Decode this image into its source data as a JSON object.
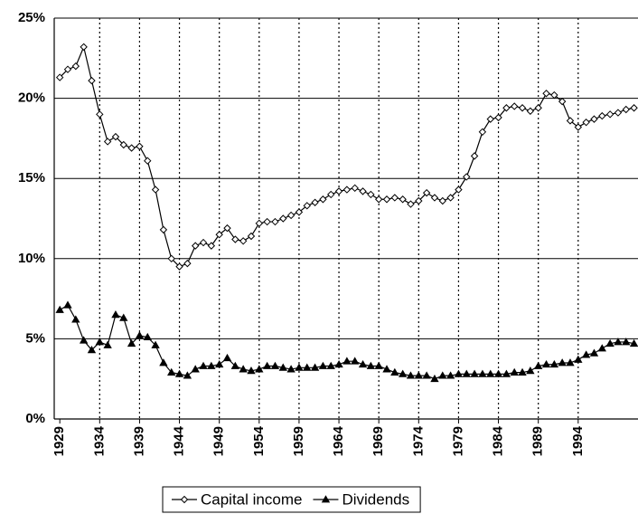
{
  "chart_data": {
    "type": "line",
    "x": [
      1929,
      1930,
      1931,
      1932,
      1933,
      1934,
      1935,
      1936,
      1937,
      1938,
      1939,
      1940,
      1941,
      1942,
      1943,
      1944,
      1945,
      1946,
      1947,
      1948,
      1949,
      1950,
      1951,
      1952,
      1953,
      1954,
      1955,
      1956,
      1957,
      1958,
      1959,
      1960,
      1961,
      1962,
      1963,
      1964,
      1965,
      1966,
      1967,
      1968,
      1969,
      1970,
      1971,
      1972,
      1973,
      1974,
      1975,
      1976,
      1977,
      1978,
      1979,
      1980,
      1981,
      1982,
      1983,
      1984,
      1985,
      1986,
      1987,
      1988,
      1989,
      1990,
      1991,
      1992,
      1993,
      1994,
      1995,
      1996,
      1997,
      1998,
      1999,
      2000,
      2001
    ],
    "series": [
      {
        "name": "Capital income",
        "color": "#000000",
        "marker": "diamond",
        "values": [
          21.3,
          21.8,
          22.0,
          23.2,
          21.1,
          19.0,
          17.3,
          17.6,
          17.1,
          16.9,
          17.0,
          16.1,
          14.3,
          11.8,
          10.0,
          9.5,
          9.7,
          10.8,
          11.0,
          10.8,
          11.5,
          11.9,
          11.2,
          11.1,
          11.4,
          12.2,
          12.3,
          12.3,
          12.5,
          12.7,
          12.9,
          13.3,
          13.5,
          13.7,
          14.0,
          14.2,
          14.3,
          14.4,
          14.2,
          14.0,
          13.7,
          13.7,
          13.8,
          13.7,
          13.4,
          13.6,
          14.1,
          13.8,
          13.6,
          13.8,
          14.3,
          15.1,
          16.4,
          17.9,
          18.7,
          18.8,
          19.4,
          19.5,
          19.4,
          19.2,
          19.4,
          20.3,
          20.2,
          19.8,
          18.6,
          18.2,
          18.5,
          18.7,
          18.9,
          19.0,
          19.1,
          19.3,
          19.4
        ]
      },
      {
        "name": "Dividends",
        "color": "#000000",
        "marker": "triangle",
        "values": [
          6.8,
          7.1,
          6.2,
          4.9,
          4.3,
          4.8,
          4.6,
          6.5,
          6.3,
          4.7,
          5.2,
          5.1,
          4.6,
          3.5,
          2.9,
          2.8,
          2.7,
          3.1,
          3.3,
          3.3,
          3.4,
          3.8,
          3.3,
          3.1,
          3.0,
          3.1,
          3.3,
          3.3,
          3.2,
          3.1,
          3.2,
          3.2,
          3.2,
          3.3,
          3.3,
          3.4,
          3.6,
          3.6,
          3.4,
          3.3,
          3.3,
          3.1,
          2.9,
          2.8,
          2.7,
          2.7,
          2.7,
          2.5,
          2.7,
          2.7,
          2.8,
          2.8,
          2.8,
          2.8,
          2.8,
          2.8,
          2.8,
          2.9,
          2.9,
          3.0,
          3.3,
          3.4,
          3.4,
          3.5,
          3.5,
          3.7,
          4.0,
          4.1,
          4.4,
          4.7,
          4.8,
          4.8,
          4.7
        ]
      }
    ],
    "xlim": [
      1928.3,
      2001.5
    ],
    "xticks": [
      1929,
      1934,
      1939,
      1944,
      1949,
      1954,
      1959,
      1964,
      1969,
      1974,
      1979,
      1984,
      1989,
      1994
    ],
    "ylim": [
      0,
      25
    ],
    "yticks": [
      {
        "value": 0,
        "label": "0%"
      },
      {
        "value": 5,
        "label": "5%"
      },
      {
        "value": 10,
        "label": "10%"
      },
      {
        "value": 15,
        "label": "15%"
      },
      {
        "value": 20,
        "label": "20%"
      },
      {
        "value": 25,
        "label": "25%"
      }
    ],
    "grid": true,
    "legend": "bottom"
  }
}
